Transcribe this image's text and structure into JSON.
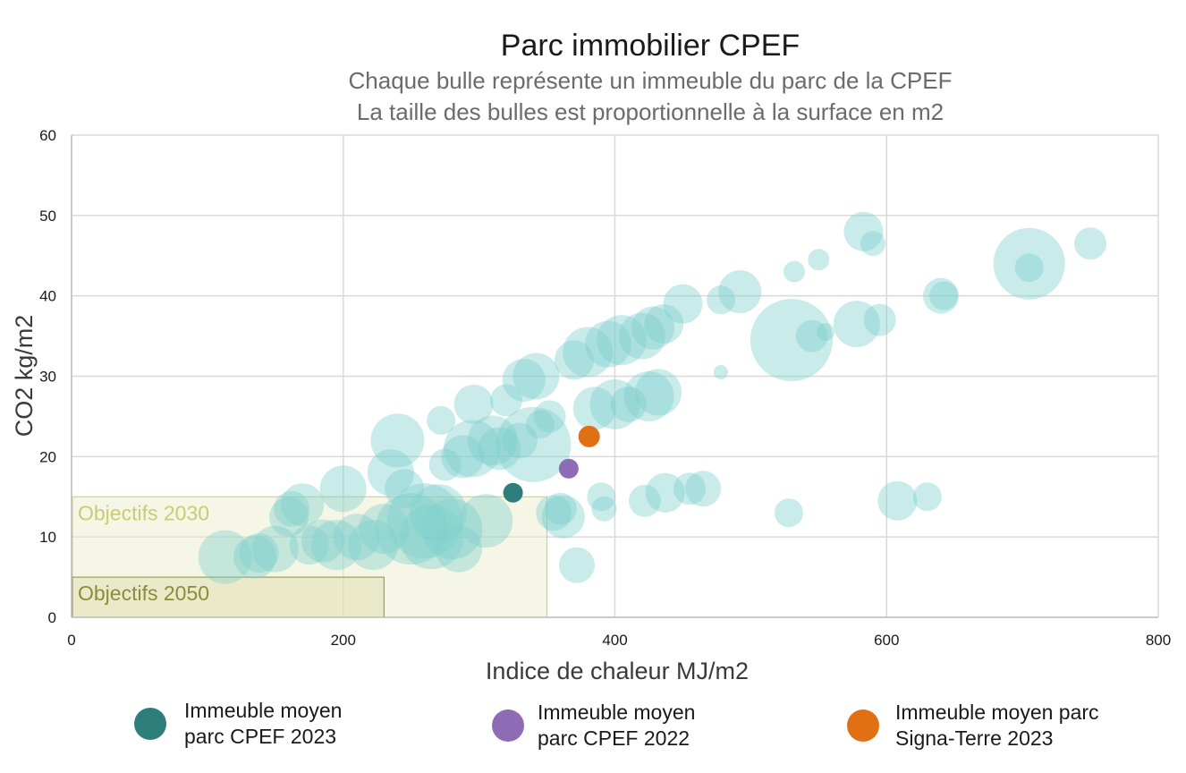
{
  "chart_data": {
    "type": "scatter",
    "title": "Parc immobilier CPEF",
    "subtitle": [
      "Chaque bulle représente un immeuble du parc de la CPEF",
      "La taille des bulles est proportionnelle à la surface en m2"
    ],
    "xlabel": "Indice de chaleur MJ/m2",
    "ylabel": "CO2 kg/m2",
    "xlim": [
      0,
      800
    ],
    "ylim": [
      0,
      60
    ],
    "x_ticks": [
      "0",
      "200",
      "400",
      "600",
      "800"
    ],
    "y_ticks": [
      "0",
      "10",
      "20",
      "30",
      "40",
      "50",
      "60"
    ],
    "grid": true,
    "targets": [
      {
        "label": "Objectifs 2030",
        "x_max": 350,
        "y_max": 15,
        "color": "#c9cc72"
      },
      {
        "label": "Objectifs 2050",
        "x_max": 230,
        "y_max": 5,
        "color": "#8c8c3a"
      }
    ],
    "bubble_color": "#7fcfcc",
    "series": [
      {
        "key": "buildings",
        "points": [
          {
            "x": 113,
            "y": 7.5,
            "r": 30
          },
          {
            "x": 135,
            "y": 7.5,
            "r": 24
          },
          {
            "x": 138,
            "y": 8,
            "r": 22
          },
          {
            "x": 150,
            "y": 8.5,
            "r": 26
          },
          {
            "x": 160,
            "y": 12.5,
            "r": 22
          },
          {
            "x": 162,
            "y": 13.5,
            "r": 20
          },
          {
            "x": 170,
            "y": 14,
            "r": 24
          },
          {
            "x": 175,
            "y": 9,
            "r": 22
          },
          {
            "x": 185,
            "y": 9.5,
            "r": 24
          },
          {
            "x": 195,
            "y": 9,
            "r": 28
          },
          {
            "x": 200,
            "y": 16,
            "r": 26
          },
          {
            "x": 210,
            "y": 10,
            "r": 26
          },
          {
            "x": 222,
            "y": 9,
            "r": 28
          },
          {
            "x": 230,
            "y": 11,
            "r": 28
          },
          {
            "x": 235,
            "y": 18,
            "r": 26
          },
          {
            "x": 240,
            "y": 22,
            "r": 30
          },
          {
            "x": 245,
            "y": 16,
            "r": 22
          },
          {
            "x": 250,
            "y": 11,
            "r": 40
          },
          {
            "x": 260,
            "y": 12,
            "r": 42
          },
          {
            "x": 265,
            "y": 10,
            "r": 36
          },
          {
            "x": 270,
            "y": 13,
            "r": 32
          },
          {
            "x": 275,
            "y": 19,
            "r": 18
          },
          {
            "x": 272,
            "y": 24.5,
            "r": 16
          },
          {
            "x": 280,
            "y": 11,
            "r": 34
          },
          {
            "x": 285,
            "y": 8.5,
            "r": 26
          },
          {
            "x": 288,
            "y": 20,
            "r": 24
          },
          {
            "x": 295,
            "y": 21,
            "r": 32
          },
          {
            "x": 296,
            "y": 26.5,
            "r": 22
          },
          {
            "x": 305,
            "y": 12,
            "r": 30
          },
          {
            "x": 310,
            "y": 22,
            "r": 28
          },
          {
            "x": 315,
            "y": 21,
            "r": 24
          },
          {
            "x": 320,
            "y": 27,
            "r": 18
          },
          {
            "x": 330,
            "y": 22,
            "r": 20
          },
          {
            "x": 333,
            "y": 29.5,
            "r": 24
          },
          {
            "x": 340,
            "y": 21.5,
            "r": 42
          },
          {
            "x": 342,
            "y": 30,
            "r": 26
          },
          {
            "x": 345,
            "y": 24,
            "r": 16
          },
          {
            "x": 352,
            "y": 25,
            "r": 18
          },
          {
            "x": 355,
            "y": 13,
            "r": 20
          },
          {
            "x": 360,
            "y": 13.5,
            "r": 18
          },
          {
            "x": 362,
            "y": 12.5,
            "r": 24
          },
          {
            "x": 370,
            "y": 32,
            "r": 22
          },
          {
            "x": 372,
            "y": 6.5,
            "r": 20
          },
          {
            "x": 380,
            "y": 33,
            "r": 28
          },
          {
            "x": 385,
            "y": 26,
            "r": 24
          },
          {
            "x": 390,
            "y": 15,
            "r": 16
          },
          {
            "x": 392,
            "y": 13.5,
            "r": 14
          },
          {
            "x": 395,
            "y": 34,
            "r": 26
          },
          {
            "x": 400,
            "y": 26.5,
            "r": 28
          },
          {
            "x": 405,
            "y": 34.5,
            "r": 28
          },
          {
            "x": 410,
            "y": 26.5,
            "r": 20
          },
          {
            "x": 420,
            "y": 35,
            "r": 26
          },
          {
            "x": 425,
            "y": 27.5,
            "r": 28
          },
          {
            "x": 428,
            "y": 36,
            "r": 24
          },
          {
            "x": 422,
            "y": 14.5,
            "r": 18
          },
          {
            "x": 432,
            "y": 28,
            "r": 26
          },
          {
            "x": 436,
            "y": 36.5,
            "r": 22
          },
          {
            "x": 437,
            "y": 15.5,
            "r": 22
          },
          {
            "x": 450,
            "y": 39,
            "r": 22
          },
          {
            "x": 455,
            "y": 16,
            "r": 18
          },
          {
            "x": 465,
            "y": 16,
            "r": 20
          },
          {
            "x": 478,
            "y": 39.5,
            "r": 16
          },
          {
            "x": 478,
            "y": 30.5,
            "r": 8
          },
          {
            "x": 492,
            "y": 40.5,
            "r": 24
          },
          {
            "x": 528,
            "y": 13,
            "r": 16
          },
          {
            "x": 530,
            "y": 34.5,
            "r": 46
          },
          {
            "x": 532,
            "y": 43,
            "r": 12
          },
          {
            "x": 545,
            "y": 35,
            "r": 18
          },
          {
            "x": 550,
            "y": 44.5,
            "r": 12
          },
          {
            "x": 555,
            "y": 35.5,
            "r": 10
          },
          {
            "x": 578,
            "y": 36.5,
            "r": 26
          },
          {
            "x": 583,
            "y": 48,
            "r": 22
          },
          {
            "x": 590,
            "y": 46.5,
            "r": 14
          },
          {
            "x": 595,
            "y": 37,
            "r": 18
          },
          {
            "x": 608,
            "y": 14.5,
            "r": 22
          },
          {
            "x": 630,
            "y": 15,
            "r": 16
          },
          {
            "x": 640,
            "y": 40,
            "r": 20
          },
          {
            "x": 642,
            "y": 40,
            "r": 16
          },
          {
            "x": 705,
            "y": 44,
            "r": 40
          },
          {
            "x": 705,
            "y": 43.5,
            "r": 16
          },
          {
            "x": 750,
            "y": 46.5,
            "r": 18
          }
        ]
      },
      {
        "key": "cpef2023",
        "name": "Immeuble moyen parc CPEF 2023",
        "legend_lines": [
          "Immeuble moyen",
          "parc CPEF 2023"
        ],
        "color": "#2e7e7b",
        "points": [
          {
            "x": 325,
            "y": 15.5,
            "r": 11
          }
        ]
      },
      {
        "key": "cpef2022",
        "name": "Immeuble moyen parc CPEF 2022",
        "legend_lines": [
          "Immeuble moyen",
          "parc CPEF 2022"
        ],
        "color": "#8e6bb5",
        "points": [
          {
            "x": 366,
            "y": 18.5,
            "r": 11
          }
        ]
      },
      {
        "key": "signa2023",
        "name": "Immeuble moyen parc Signa-Terre 2023",
        "legend_lines": [
          "Immeuble moyen parc",
          "Signa-Terre 2023"
        ],
        "color": "#e07013",
        "points": [
          {
            "x": 381,
            "y": 22.5,
            "r": 12
          }
        ]
      }
    ],
    "legend_placement": "bottom"
  }
}
